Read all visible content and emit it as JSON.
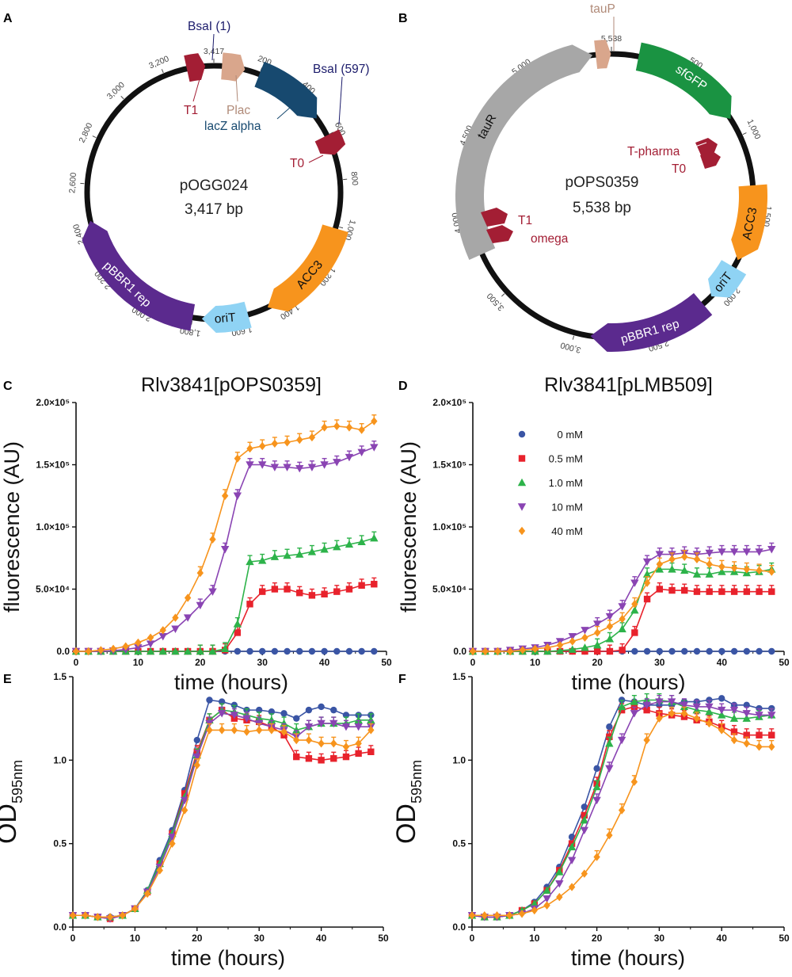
{
  "panels": {
    "A": "A",
    "B": "B",
    "C": "C",
    "D": "D",
    "E": "E",
    "F": "F"
  },
  "maps": [
    {
      "id": "A",
      "name": "pOGG024",
      "size": "3,417 bp",
      "length": 3417,
      "ticks": [
        "200",
        "400",
        "600",
        "800",
        "1,000",
        "1,200",
        "1,400",
        "1,600",
        "1,800",
        "2,000",
        "2,200",
        "2,400",
        "2,600",
        "2,800",
        "3,000",
        "3,200",
        "3,417"
      ],
      "tick_positions": [
        200,
        400,
        600,
        800,
        1000,
        1200,
        1400,
        1600,
        1800,
        2000,
        2200,
        2400,
        2600,
        2800,
        3000,
        3200,
        3417
      ],
      "features": [
        {
          "name": "lacZ alpha",
          "start": 200,
          "end": 515,
          "color": "#17496f",
          "label_color": "#17496f",
          "label_inside": false
        },
        {
          "name": "T0",
          "start": 600,
          "end": 690,
          "color": "#a31e34",
          "label_color": "#a31e34",
          "label_inside": false
        },
        {
          "name": "ACC3",
          "start": 1010,
          "end": 1470,
          "color": "#f7941d",
          "label_color": "#111111",
          "label_inside": true
        },
        {
          "name": "oriT",
          "start": 1560,
          "end": 1760,
          "color": "#8fd3f4",
          "label_color": "#111111",
          "label_inside": true
        },
        {
          "name": "pBBR1 rep",
          "start": 1800,
          "end": 2440,
          "color": "#5b2a8e",
          "label_color": "#ffffff",
          "label_inside": true
        },
        {
          "name": "T1",
          "start": 3300,
          "end": 3380,
          "color": "#a31e34",
          "label_color": "#a31e34",
          "label_inside": false
        },
        {
          "name": "Plac",
          "start": 35,
          "end": 135,
          "color": "#d9a68c",
          "label_color": "#b08a78",
          "label_inside": false
        }
      ],
      "sites": [
        "BsaI (1)",
        "BsaI (597)"
      ]
    },
    {
      "id": "B",
      "name": "pOPS0359",
      "size": "5,538 bp",
      "length": 5538,
      "ticks": [
        "500",
        "1,000",
        "1,500",
        "2,000",
        "2,500",
        "3,000",
        "3,500",
        "4,000",
        "4,500",
        "5,000",
        "5,538"
      ],
      "tick_positions": [
        500,
        1000,
        1500,
        2000,
        2500,
        3000,
        3500,
        4000,
        4500,
        5000,
        5538
      ],
      "features": [
        {
          "name": "sfGFP",
          "start": 170,
          "end": 880,
          "color": "#1a9342",
          "label_color": "#ffffff",
          "label_inside": true
        },
        {
          "name": "ACC3",
          "start": 1320,
          "end": 1800,
          "color": "#f7941d",
          "label_color": "#111111",
          "label_inside": true
        },
        {
          "name": "oriT",
          "start": 1850,
          "end": 2080,
          "color": "#8fd3f4",
          "label_color": "#111111",
          "label_inside": true
        },
        {
          "name": "pBBR1 rep",
          "start": 2150,
          "end": 2900,
          "color": "#5b2a8e",
          "label_color": "#ffffff",
          "label_inside": true
        },
        {
          "name": "tauR",
          "start": 3780,
          "end": 5420,
          "color": "#a7a7a7",
          "label_color": "#111111",
          "label_inside": true
        },
        {
          "name": "tauP",
          "start": 5440,
          "end": 5535,
          "color": "#d9a68c",
          "label_color": "#b08a78",
          "label_inside": false
        }
      ],
      "terminators": [
        "T-pharma",
        "T0",
        "T1",
        "omega"
      ]
    }
  ],
  "legend": {
    "items": [
      {
        "label": "0 mM",
        "color": "#3a55a5",
        "marker": "circle"
      },
      {
        "label": "0.5 mM",
        "color": "#e8222c",
        "marker": "square"
      },
      {
        "label": "1.0 mM",
        "color": "#2db34a",
        "marker": "triangle-up"
      },
      {
        "label": "10 mM",
        "color": "#8a44b3",
        "marker": "triangle-down"
      },
      {
        "label": "40 mM",
        "color": "#f7941d",
        "marker": "diamond"
      }
    ]
  },
  "chart_data": [
    {
      "id": "C",
      "type": "line",
      "title": "Rlv3841[pOPS0359]",
      "xlabel": "time (hours)",
      "ylabel": "fluorescence (AU)",
      "xlim": [
        0,
        50
      ],
      "ylim": [
        0,
        200000
      ],
      "xticks": [
        "0",
        "10",
        "20",
        "30",
        "40",
        "50"
      ],
      "yticks": [
        "0.0",
        "5.0×10⁴",
        "1.0×10⁵",
        "1.5×10⁵",
        "2.0×10⁵"
      ],
      "x": [
        0,
        2,
        4,
        6,
        8,
        10,
        12,
        14,
        16,
        18,
        20,
        22,
        24,
        26,
        28,
        30,
        32,
        34,
        36,
        38,
        40,
        42,
        44,
        46,
        48
      ],
      "series": [
        {
          "name": "0 mM",
          "values": [
            0,
            0,
            0,
            0,
            0,
            0,
            0,
            0,
            0,
            0,
            0,
            0,
            0,
            0,
            0,
            0,
            0,
            0,
            0,
            0,
            0,
            0,
            0,
            0,
            0
          ]
        },
        {
          "name": "0.5 mM",
          "values": [
            0,
            0,
            0,
            0,
            0,
            0,
            0,
            0,
            0,
            0,
            0,
            0,
            1000,
            15000,
            38000,
            48000,
            50000,
            50000,
            47000,
            45000,
            46000,
            48000,
            50000,
            53000,
            54000
          ]
        },
        {
          "name": "1.0 mM",
          "values": [
            0,
            0,
            0,
            0,
            0,
            0,
            0,
            0,
            0,
            0,
            0,
            0,
            2000,
            22000,
            72000,
            73000,
            76000,
            77000,
            78000,
            80000,
            82000,
            84000,
            86000,
            88000,
            91000
          ]
        },
        {
          "name": "10 mM",
          "values": [
            0,
            0,
            0,
            500,
            1500,
            3000,
            6000,
            12000,
            18000,
            27000,
            37000,
            48000,
            82000,
            125000,
            150000,
            150000,
            148000,
            148000,
            147000,
            148000,
            150000,
            152000,
            156000,
            160000,
            164000
          ]
        },
        {
          "name": "40 mM",
          "values": [
            0,
            0,
            1000,
            2000,
            4000,
            7000,
            11000,
            17000,
            27000,
            43000,
            63000,
            90000,
            125000,
            155000,
            163000,
            165000,
            167000,
            168000,
            170000,
            172000,
            180000,
            181000,
            180000,
            178000,
            185000
          ]
        }
      ],
      "errors": {
        "40 mM": [
          0,
          0,
          0,
          0,
          0,
          0,
          0,
          0,
          0,
          0,
          0,
          0,
          0,
          0,
          0,
          0,
          0,
          0,
          0,
          0,
          0,
          0,
          0,
          0,
          0
        ]
      }
    },
    {
      "id": "D",
      "type": "line",
      "title": "Rlv3841[pLMB509]",
      "xlabel": "time (hours)",
      "ylabel": "fluorescence (AU)",
      "xlim": [
        0,
        50
      ],
      "ylim": [
        0,
        200000
      ],
      "xticks": [
        "0",
        "10",
        "20",
        "30",
        "40",
        "50"
      ],
      "yticks": [
        "0.0",
        "5.0×10⁴",
        "1.0×10⁵",
        "1.5×10⁵",
        "2.0×10⁵"
      ],
      "x": [
        0,
        2,
        4,
        6,
        8,
        10,
        12,
        14,
        16,
        18,
        20,
        22,
        24,
        26,
        28,
        30,
        32,
        34,
        36,
        38,
        40,
        42,
        44,
        46,
        48
      ],
      "series": [
        {
          "name": "0 mM",
          "values": [
            0,
            0,
            0,
            0,
            0,
            0,
            0,
            0,
            0,
            0,
            0,
            0,
            0,
            0,
            0,
            0,
            0,
            0,
            0,
            0,
            0,
            0,
            0,
            0,
            0
          ]
        },
        {
          "name": "0.5 mM",
          "values": [
            0,
            0,
            0,
            0,
            0,
            0,
            0,
            0,
            0,
            0,
            0,
            0,
            1000,
            15000,
            42000,
            50000,
            49000,
            49000,
            48000,
            48000,
            48000,
            48000,
            48000,
            48000,
            48000
          ]
        },
        {
          "name": "1.0 mM",
          "values": [
            0,
            0,
            0,
            0,
            0,
            0,
            0,
            500,
            1500,
            3000,
            5000,
            10000,
            18000,
            33000,
            62000,
            66000,
            66000,
            65000,
            62000,
            62000,
            64000,
            64000,
            63000,
            64000,
            66000
          ]
        },
        {
          "name": "10 mM",
          "values": [
            0,
            0,
            0,
            1000,
            2000,
            3000,
            5000,
            8000,
            12000,
            17000,
            22000,
            28000,
            36000,
            55000,
            72000,
            78000,
            78000,
            79000,
            78000,
            79000,
            80000,
            80000,
            80000,
            80000,
            82000
          ]
        },
        {
          "name": "40 mM",
          "values": [
            0,
            0,
            0,
            0,
            1000,
            2000,
            3000,
            5000,
            8000,
            11000,
            15000,
            20000,
            26000,
            38000,
            55000,
            70000,
            74000,
            76000,
            74000,
            70000,
            68000,
            67000,
            66000,
            65000,
            64000
          ]
        }
      ]
    },
    {
      "id": "E",
      "type": "line",
      "title": "",
      "xlabel": "time (hours)",
      "ylabel": "OD595nm",
      "ylabel_main": "OD",
      "ylabel_sub": "595nm",
      "xlim": [
        0,
        50
      ],
      "ylim": [
        0,
        1.5
      ],
      "xticks": [
        "0",
        "10",
        "20",
        "30",
        "40",
        "50"
      ],
      "yticks": [
        "0.0",
        "0.5",
        "1.0",
        "1.5"
      ],
      "x": [
        0,
        2,
        4,
        6,
        8,
        10,
        12,
        14,
        16,
        18,
        20,
        22,
        24,
        26,
        28,
        30,
        32,
        34,
        36,
        38,
        40,
        42,
        44,
        46,
        48
      ],
      "series": [
        {
          "name": "0 mM",
          "values": [
            0.07,
            0.07,
            0.06,
            0.06,
            0.07,
            0.11,
            0.22,
            0.4,
            0.58,
            0.82,
            1.12,
            1.36,
            1.35,
            1.33,
            1.3,
            1.3,
            1.29,
            1.28,
            1.25,
            1.3,
            1.32,
            1.3,
            1.27,
            1.27,
            1.27
          ]
        },
        {
          "name": "0.5 mM",
          "values": [
            0.07,
            0.07,
            0.06,
            0.05,
            0.07,
            0.11,
            0.21,
            0.38,
            0.56,
            0.8,
            1.05,
            1.24,
            1.3,
            1.25,
            1.24,
            1.23,
            1.2,
            1.15,
            1.02,
            1.01,
            1.0,
            1.01,
            1.02,
            1.04,
            1.05
          ]
        },
        {
          "name": "1.0 mM",
          "values": [
            0.07,
            0.07,
            0.06,
            0.06,
            0.07,
            0.11,
            0.22,
            0.38,
            0.56,
            0.78,
            1.03,
            1.24,
            1.3,
            1.29,
            1.27,
            1.25,
            1.24,
            1.22,
            1.18,
            1.2,
            1.22,
            1.22,
            1.22,
            1.24,
            1.24
          ]
        },
        {
          "name": "10 mM",
          "values": [
            0.07,
            0.07,
            0.06,
            0.05,
            0.07,
            0.11,
            0.21,
            0.36,
            0.54,
            0.76,
            1.02,
            1.22,
            1.28,
            1.27,
            1.25,
            1.22,
            1.2,
            1.18,
            1.14,
            1.2,
            1.22,
            1.22,
            1.2,
            1.2,
            1.2
          ]
        },
        {
          "name": "40 mM",
          "values": [
            0.07,
            0.07,
            0.06,
            0.06,
            0.07,
            0.11,
            0.2,
            0.34,
            0.5,
            0.7,
            0.97,
            1.18,
            1.18,
            1.18,
            1.17,
            1.18,
            1.18,
            1.17,
            1.12,
            1.12,
            1.1,
            1.1,
            1.08,
            1.1,
            1.18
          ]
        }
      ]
    },
    {
      "id": "F",
      "type": "line",
      "title": "",
      "xlabel": "time (hours)",
      "ylabel": "OD595nm",
      "ylabel_main": "OD",
      "ylabel_sub": "595nm",
      "xlim": [
        0,
        50
      ],
      "ylim": [
        0,
        1.5
      ],
      "xticks": [
        "0",
        "10",
        "20",
        "30",
        "40",
        "50"
      ],
      "yticks": [
        "0.0",
        "0.5",
        "1.0",
        "1.5"
      ],
      "x": [
        0,
        2,
        4,
        6,
        8,
        10,
        12,
        14,
        16,
        18,
        20,
        22,
        24,
        26,
        28,
        30,
        32,
        34,
        36,
        38,
        40,
        42,
        44,
        46,
        48
      ],
      "series": [
        {
          "name": "0 mM",
          "values": [
            0.07,
            0.06,
            0.06,
            0.07,
            0.1,
            0.15,
            0.24,
            0.36,
            0.54,
            0.72,
            0.95,
            1.2,
            1.36,
            1.35,
            1.33,
            1.33,
            1.33,
            1.35,
            1.35,
            1.36,
            1.37,
            1.33,
            1.33,
            1.31,
            1.31
          ]
        },
        {
          "name": "0.5 mM",
          "values": [
            0.07,
            0.06,
            0.06,
            0.07,
            0.1,
            0.14,
            0.22,
            0.34,
            0.5,
            0.67,
            0.86,
            1.14,
            1.3,
            1.32,
            1.3,
            1.28,
            1.27,
            1.26,
            1.24,
            1.23,
            1.2,
            1.17,
            1.15,
            1.15,
            1.15
          ]
        },
        {
          "name": "1.0 mM",
          "values": [
            0.07,
            0.06,
            0.06,
            0.07,
            0.1,
            0.14,
            0.22,
            0.33,
            0.48,
            0.64,
            0.84,
            1.1,
            1.32,
            1.35,
            1.36,
            1.36,
            1.35,
            1.32,
            1.3,
            1.29,
            1.27,
            1.25,
            1.25,
            1.26,
            1.27
          ]
        },
        {
          "name": "10 mM",
          "values": [
            0.07,
            0.06,
            0.06,
            0.07,
            0.08,
            0.11,
            0.17,
            0.26,
            0.4,
            0.58,
            0.76,
            0.95,
            1.12,
            1.28,
            1.33,
            1.35,
            1.35,
            1.33,
            1.32,
            1.32,
            1.3,
            1.3,
            1.28,
            1.27,
            1.27
          ]
        },
        {
          "name": "40 mM",
          "values": [
            0.07,
            0.07,
            0.07,
            0.07,
            0.08,
            0.1,
            0.13,
            0.18,
            0.24,
            0.32,
            0.42,
            0.55,
            0.7,
            0.87,
            1.12,
            1.25,
            1.28,
            1.28,
            1.25,
            1.22,
            1.18,
            1.12,
            1.1,
            1.08,
            1.08
          ]
        }
      ]
    }
  ]
}
